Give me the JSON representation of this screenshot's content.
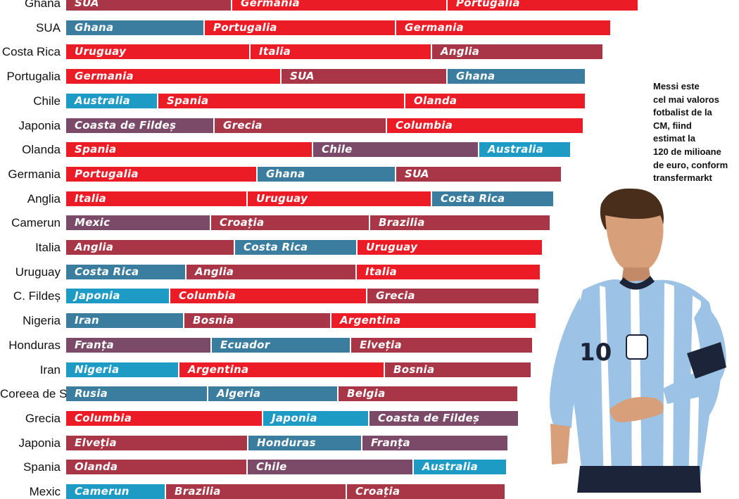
{
  "chart_data": {
    "type": "bar",
    "stacked": true,
    "orientation": "horizontal",
    "title": "",
    "colors": {
      "red": "#eb1c26",
      "maroon": "#a83646",
      "teal": "#3a7d9e",
      "cyan": "#1e9bc5",
      "purple": "#7a4a68"
    },
    "rows": [
      {
        "label": "Ghana",
        "segments": [
          {
            "name": "SUA",
            "value": 236,
            "color": "maroon"
          },
          {
            "name": "Germania",
            "value": 306,
            "color": "red"
          },
          {
            "name": "Portugalia",
            "value": 272,
            "color": "red"
          }
        ]
      },
      {
        "label": "SUA",
        "segments": [
          {
            "name": "Ghana",
            "value": 197,
            "color": "teal"
          },
          {
            "name": "Portugalia",
            "value": 272,
            "color": "red"
          },
          {
            "name": "Germania",
            "value": 306,
            "color": "red"
          }
        ]
      },
      {
        "label": "Costa Rica",
        "segments": [
          {
            "name": "Uruguay",
            "value": 262,
            "color": "red"
          },
          {
            "name": "Italia",
            "value": 258,
            "color": "red"
          },
          {
            "name": "Anglia",
            "value": 244,
            "color": "maroon"
          }
        ]
      },
      {
        "label": "Portugalia",
        "segments": [
          {
            "name": "Germania",
            "value": 306,
            "color": "red"
          },
          {
            "name": "SUA",
            "value": 236,
            "color": "maroon"
          },
          {
            "name": "Ghana",
            "value": 197,
            "color": "teal"
          }
        ]
      },
      {
        "label": "Chile",
        "segments": [
          {
            "name": "Australia",
            "value": 131,
            "color": "cyan"
          },
          {
            "name": "Spania",
            "value": 351,
            "color": "red"
          },
          {
            "name": "Olanda",
            "value": 257,
            "color": "red"
          }
        ]
      },
      {
        "label": "Japonia",
        "segments": [
          {
            "name": "Coasta de Fildeș",
            "value": 211,
            "color": "purple"
          },
          {
            "name": "Grecia",
            "value": 245,
            "color": "maroon"
          },
          {
            "name": "Columbia",
            "value": 280,
            "color": "red"
          }
        ]
      },
      {
        "label": "Olanda",
        "segments": [
          {
            "name": "Spania",
            "value": 351,
            "color": "red"
          },
          {
            "name": "Chile",
            "value": 236,
            "color": "purple"
          },
          {
            "name": "Australia",
            "value": 131,
            "color": "cyan"
          }
        ]
      },
      {
        "label": "Germania",
        "segments": [
          {
            "name": "Portugalia",
            "value": 272,
            "color": "red"
          },
          {
            "name": "Ghana",
            "value": 197,
            "color": "teal"
          },
          {
            "name": "SUA",
            "value": 236,
            "color": "maroon"
          }
        ]
      },
      {
        "label": "Anglia",
        "segments": [
          {
            "name": "Italia",
            "value": 258,
            "color": "red"
          },
          {
            "name": "Uruguay",
            "value": 262,
            "color": "red"
          },
          {
            "name": "Costa Rica",
            "value": 174,
            "color": "teal"
          }
        ]
      },
      {
        "label": "Camerun",
        "segments": [
          {
            "name": "Mexic",
            "value": 206,
            "color": "purple"
          },
          {
            "name": "Croația",
            "value": 226,
            "color": "maroon"
          },
          {
            "name": "Brazilia",
            "value": 257,
            "color": "maroon"
          }
        ]
      },
      {
        "label": "Italia",
        "segments": [
          {
            "name": "Anglia",
            "value": 240,
            "color": "maroon"
          },
          {
            "name": "Costa Rica",
            "value": 174,
            "color": "teal"
          },
          {
            "name": "Uruguay",
            "value": 264,
            "color": "red"
          }
        ]
      },
      {
        "label": "Uruguay",
        "segments": [
          {
            "name": "Costa Rica",
            "value": 171,
            "color": "teal"
          },
          {
            "name": "Anglia",
            "value": 242,
            "color": "maroon"
          },
          {
            "name": "Italia",
            "value": 262,
            "color": "red"
          }
        ]
      },
      {
        "label": "C. Fildeș",
        "segments": [
          {
            "name": "Japonia",
            "value": 148,
            "color": "cyan"
          },
          {
            "name": "Columbia",
            "value": 280,
            "color": "red"
          },
          {
            "name": "Grecia",
            "value": 245,
            "color": "maroon"
          }
        ]
      },
      {
        "label": "Nigeria",
        "segments": [
          {
            "name": "Iran",
            "value": 168,
            "color": "teal"
          },
          {
            "name": "Bosnia",
            "value": 209,
            "color": "maroon"
          },
          {
            "name": "Argentina",
            "value": 292,
            "color": "red"
          }
        ]
      },
      {
        "label": "Honduras",
        "segments": [
          {
            "name": "Franța",
            "value": 207,
            "color": "purple"
          },
          {
            "name": "Ecuador",
            "value": 198,
            "color": "teal"
          },
          {
            "name": "Elveția",
            "value": 259,
            "color": "maroon"
          }
        ]
      },
      {
        "label": "Iran",
        "segments": [
          {
            "name": "Nigeria",
            "value": 161,
            "color": "cyan"
          },
          {
            "name": "Argentina",
            "value": 292,
            "color": "red"
          },
          {
            "name": "Bosnia",
            "value": 209,
            "color": "maroon"
          }
        ]
      },
      {
        "label": "Coreea de S.",
        "segments": [
          {
            "name": "Rusia",
            "value": 202,
            "color": "teal"
          },
          {
            "name": "Algeria",
            "value": 185,
            "color": "teal"
          },
          {
            "name": "Belgia",
            "value": 256,
            "color": "maroon"
          }
        ]
      },
      {
        "label": "Grecia",
        "segments": [
          {
            "name": "Columbia",
            "value": 280,
            "color": "red"
          },
          {
            "name": "Japonia",
            "value": 151,
            "color": "cyan"
          },
          {
            "name": "Coasta de Fildeș",
            "value": 213,
            "color": "purple"
          }
        ]
      },
      {
        "label": "Japonia",
        "segments": [
          {
            "name": "Elveția",
            "value": 259,
            "color": "maroon"
          },
          {
            "name": "Honduras",
            "value": 162,
            "color": "teal"
          },
          {
            "name": "Franța",
            "value": 208,
            "color": "purple"
          }
        ]
      },
      {
        "label": "Spania",
        "segments": [
          {
            "name": "Olanda",
            "value": 258,
            "color": "maroon"
          },
          {
            "name": "Chile",
            "value": 236,
            "color": "purple"
          },
          {
            "name": "Australia",
            "value": 133,
            "color": "cyan"
          }
        ]
      },
      {
        "label": "Mexic",
        "segments": [
          {
            "name": "Camerun",
            "value": 142,
            "color": "cyan"
          },
          {
            "name": "Brazilia",
            "value": 257,
            "color": "maroon"
          },
          {
            "name": "Croația",
            "value": 226,
            "color": "maroon"
          }
        ]
      }
    ]
  },
  "note": {
    "lines": [
      "Messi este",
      "cel mai valoros",
      "fotbalist de la",
      "CM, fiind",
      "estimat la",
      "120 de milioane",
      "de euro, conform",
      "transfermarkt"
    ]
  },
  "photo": {
    "shirt_number": "10",
    "jersey_colors": {
      "light": "#9cc3e6",
      "dark": "#1b2438",
      "skin": "#d8a07a",
      "hair": "#4a2e1c"
    }
  }
}
